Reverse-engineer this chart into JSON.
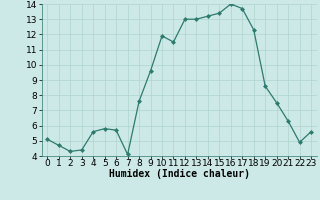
{
  "x": [
    0,
    1,
    2,
    3,
    4,
    5,
    6,
    7,
    8,
    9,
    10,
    11,
    12,
    13,
    14,
    15,
    16,
    17,
    18,
    19,
    20,
    21,
    22,
    23
  ],
  "y": [
    5.1,
    4.7,
    4.3,
    4.4,
    5.6,
    5.8,
    5.7,
    4.1,
    7.6,
    9.6,
    11.9,
    11.5,
    13.0,
    13.0,
    13.2,
    13.4,
    14.0,
    13.7,
    12.3,
    8.6,
    7.5,
    6.3,
    4.9,
    5.6
  ],
  "line_color": "#2d7a6e",
  "marker": "D",
  "marker_size": 2,
  "bg_color": "#cce9e7",
  "grid_color": "#b0d4d0",
  "xlabel": "Humidex (Indice chaleur)",
  "xlim": [
    -0.5,
    23.5
  ],
  "ylim": [
    4,
    14
  ],
  "yticks": [
    4,
    5,
    6,
    7,
    8,
    9,
    10,
    11,
    12,
    13,
    14
  ],
  "xticks": [
    0,
    1,
    2,
    3,
    4,
    5,
    6,
    7,
    8,
    9,
    10,
    11,
    12,
    13,
    14,
    15,
    16,
    17,
    18,
    19,
    20,
    21,
    22,
    23
  ],
  "xlabel_fontsize": 7,
  "tick_fontsize": 6.5
}
